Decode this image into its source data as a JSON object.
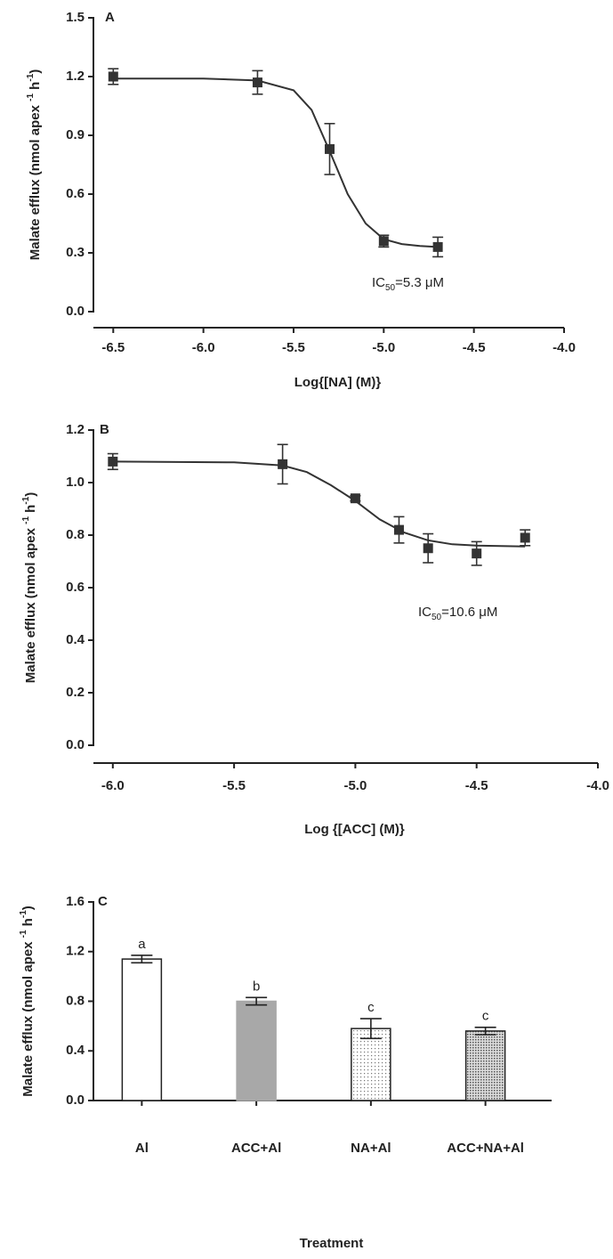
{
  "chart_data": [
    {
      "type": "scatter",
      "label": "A",
      "x": [
        -6.5,
        -5.7,
        -5.3,
        -5.0,
        -4.7
      ],
      "values": [
        1.2,
        1.17,
        0.83,
        0.36,
        0.33
      ],
      "errors": [
        0.04,
        0.06,
        0.13,
        0.03,
        0.05
      ],
      "curve": {
        "x": [
          -6.5,
          -6.0,
          -5.7,
          -5.5,
          -5.4,
          -5.3,
          -5.2,
          -5.1,
          -5.0,
          -4.9,
          -4.8,
          -4.7
        ],
        "values": [
          1.19,
          1.19,
          1.18,
          1.13,
          1.03,
          0.82,
          0.6,
          0.45,
          0.37,
          0.345,
          0.335,
          0.33
        ]
      },
      "color": "#333333",
      "xlim": [
        -6.61,
        -4.0
      ],
      "xticks": [
        -6.5,
        {
          "value": -6,
          "label": "-6.0"
        },
        -5.5,
        {
          "value": -5,
          "label": "-5.0"
        },
        -4.5,
        {
          "value": -4,
          "label": "-4.0"
        }
      ],
      "ylim": [
        0,
        1.5
      ],
      "yticks": [
        {
          "value": 0,
          "label": "0.0"
        },
        0.3,
        0.6,
        0.9,
        1.2,
        1.5
      ],
      "x_label": "Log{[NA] (M)}",
      "y_label": [
        "Malate efflux (nmol apex ",
        "-1",
        " h",
        "-1",
        ")"
      ],
      "annotation": [
        "IC",
        "50",
        "=5.3 μM"
      ]
    },
    {
      "type": "scatter",
      "label": "B",
      "x": [
        -6.0,
        -5.3,
        -5.0,
        -4.82,
        -4.7,
        -4.5,
        -4.3
      ],
      "values": [
        1.08,
        1.07,
        0.94,
        0.82,
        0.75,
        0.73,
        0.79
      ],
      "errors": [
        0.03,
        0.075,
        0.01,
        0.05,
        0.055,
        0.045,
        0.03
      ],
      "curve": {
        "x": [
          -6.0,
          -5.5,
          -5.3,
          -5.2,
          -5.1,
          -5.0,
          -4.9,
          -4.8,
          -4.7,
          -4.6,
          -4.5,
          -4.3
        ],
        "values": [
          1.08,
          1.077,
          1.065,
          1.04,
          0.99,
          0.93,
          0.86,
          0.81,
          0.78,
          0.765,
          0.76,
          0.757
        ]
      },
      "color": "#333333",
      "xlim": [
        -6.08,
        -4.0
      ],
      "xticks": [
        {
          "value": -6,
          "label": "-6.0"
        },
        -5.5,
        {
          "value": -5,
          "label": "-5.0"
        },
        -4.5,
        {
          "value": -4,
          "label": "-4.0"
        }
      ],
      "ylim": [
        0,
        1.2
      ],
      "yticks": [
        {
          "value": 0,
          "label": "0.0"
        },
        0.2,
        0.4,
        0.6,
        0.8,
        {
          "value": 1,
          "label": "1.0"
        },
        1.2
      ],
      "x_label": "Log {[ACC] (M)}",
      "y_label": [
        "Malate efflux (nmol apex ",
        "-1",
        " h",
        "-1",
        ")"
      ],
      "annotation": [
        "IC",
        "50",
        "=10.6 μM"
      ]
    },
    {
      "type": "bar",
      "label": "C",
      "categories": [
        "Al",
        "ACC+Al",
        "NA+Al",
        "ACC+NA+Al"
      ],
      "values": [
        1.14,
        0.8,
        0.58,
        0.56
      ],
      "errors": [
        0.03,
        0.03,
        0.08,
        0.03
      ],
      "letters": [
        "a",
        "b",
        "c",
        "c"
      ],
      "fills": [
        "white",
        "gray",
        "dots",
        "crosshatch"
      ],
      "ylim": [
        0,
        1.6
      ],
      "yticks": [
        {
          "value": 0,
          "label": "0.0"
        },
        0.4,
        0.8,
        1.2,
        1.6
      ],
      "x_label": "Treatment",
      "y_label": [
        "Malate efflux (nmol apex ",
        "-1",
        " h",
        "-1",
        ")"
      ]
    }
  ]
}
